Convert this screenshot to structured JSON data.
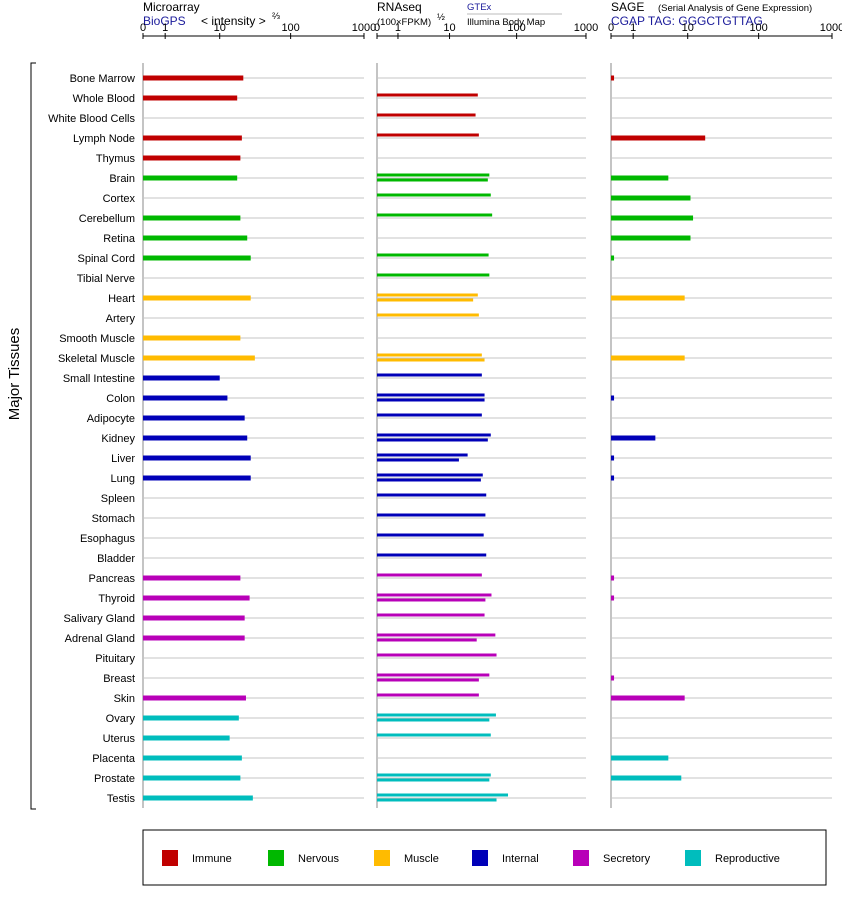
{
  "side_label": "Major Tissues",
  "legend": [
    {
      "key": "immune",
      "label": "Immune",
      "color": "#c00000"
    },
    {
      "key": "nervous",
      "label": "Nervous",
      "color": "#00b800"
    },
    {
      "key": "muscle",
      "label": "Muscle",
      "color": "#ffbb00"
    },
    {
      "key": "internal",
      "label": "Internal",
      "color": "#0000b8"
    },
    {
      "key": "secretory",
      "label": "Secretory",
      "color": "#b800b8"
    },
    {
      "key": "reproductive",
      "label": "Reproductive",
      "color": "#00bdbd"
    }
  ],
  "panels": {
    "microarray": {
      "title": "Microarray",
      "source": "BioGPS",
      "unit_base": "< intensity >",
      "unit_exp": "⅔",
      "ticks": [
        "0",
        "1",
        "10",
        "100",
        "1000"
      ]
    },
    "rnaseq": {
      "title": "RNAseq",
      "unit": "(100×FPKM)",
      "unit_exp": "½",
      "source1": "GTEx",
      "source2": "Illumina Body Map",
      "ticks": [
        "0",
        "1",
        "10",
        "100",
        "1000"
      ]
    },
    "sage": {
      "title": "SAGE",
      "subtitle": "(Serial Analysis of Gene Expression)",
      "tag": "CGAP TAG: GGGCTGTTAG",
      "ticks": [
        "0",
        "1",
        "10",
        "100",
        "1000"
      ]
    }
  },
  "chart_data": {
    "type": "bar",
    "orientation": "horizontal",
    "x_scale": "log(1+x)",
    "xlim": [
      0,
      1000
    ],
    "categories": [
      "Bone Marrow",
      "Whole Blood",
      "White Blood Cells",
      "Lymph Node",
      "Thymus",
      "Brain",
      "Cortex",
      "Cerebellum",
      "Retina",
      "Spinal Cord",
      "Tibial Nerve",
      "Heart",
      "Artery",
      "Smooth Muscle",
      "Skeletal Muscle",
      "Small Intestine",
      "Colon",
      "Adipocyte",
      "Kidney",
      "Liver",
      "Lung",
      "Spleen",
      "Stomach",
      "Esophagus",
      "Bladder",
      "Pancreas",
      "Thyroid",
      "Salivary Gland",
      "Adrenal Gland",
      "Pituitary",
      "Breast",
      "Skin",
      "Ovary",
      "Uterus",
      "Placenta",
      "Prostate",
      "Testis"
    ],
    "groups": [
      "immune",
      "immune",
      "immune",
      "immune",
      "immune",
      "nervous",
      "nervous",
      "nervous",
      "nervous",
      "nervous",
      "nervous",
      "muscle",
      "muscle",
      "muscle",
      "muscle",
      "internal",
      "internal",
      "internal",
      "internal",
      "internal",
      "internal",
      "internal",
      "internal",
      "internal",
      "internal",
      "secretory",
      "secretory",
      "secretory",
      "secretory",
      "secretory",
      "secretory",
      "secretory",
      "reproductive",
      "reproductive",
      "reproductive",
      "reproductive",
      "reproductive"
    ],
    "series": [
      {
        "name": "Microarray (BioGPS)",
        "values": [
          22,
          18,
          null,
          21,
          20,
          18,
          null,
          20,
          25,
          28,
          null,
          28,
          null,
          20,
          32,
          10,
          13,
          23,
          25,
          28,
          28,
          null,
          null,
          null,
          null,
          20,
          27,
          23,
          23,
          null,
          null,
          24,
          19,
          14,
          21,
          20,
          30
        ]
      },
      {
        "name": "RNAseq (GTEx)",
        "values": [
          null,
          27,
          25,
          28,
          null,
          40,
          42,
          44,
          null,
          39,
          40,
          27,
          28,
          null,
          31,
          31,
          34,
          31,
          42,
          19,
          32,
          36,
          35,
          33,
          36,
          31,
          43,
          34,
          49,
          51,
          40,
          28,
          50,
          42,
          null,
          42,
          75
        ]
      },
      {
        "name": "RNAseq (Illumina Body Map)",
        "values": [
          null,
          null,
          null,
          null,
          null,
          38,
          null,
          null,
          null,
          null,
          null,
          23,
          null,
          null,
          34,
          null,
          34,
          null,
          38,
          14,
          30,
          null,
          null,
          null,
          null,
          null,
          35,
          null,
          26,
          null,
          28,
          null,
          40,
          null,
          null,
          40,
          51
        ]
      },
      {
        "name": "SAGE (CGAP)",
        "values": [
          0.1,
          null,
          null,
          18,
          null,
          5,
          11,
          12,
          11,
          0.1,
          null,
          9,
          null,
          null,
          9,
          null,
          0.1,
          null,
          3,
          0.1,
          0.1,
          null,
          null,
          null,
          null,
          0.1,
          0.1,
          null,
          null,
          null,
          0.1,
          9,
          null,
          null,
          5,
          8,
          null
        ]
      }
    ]
  }
}
